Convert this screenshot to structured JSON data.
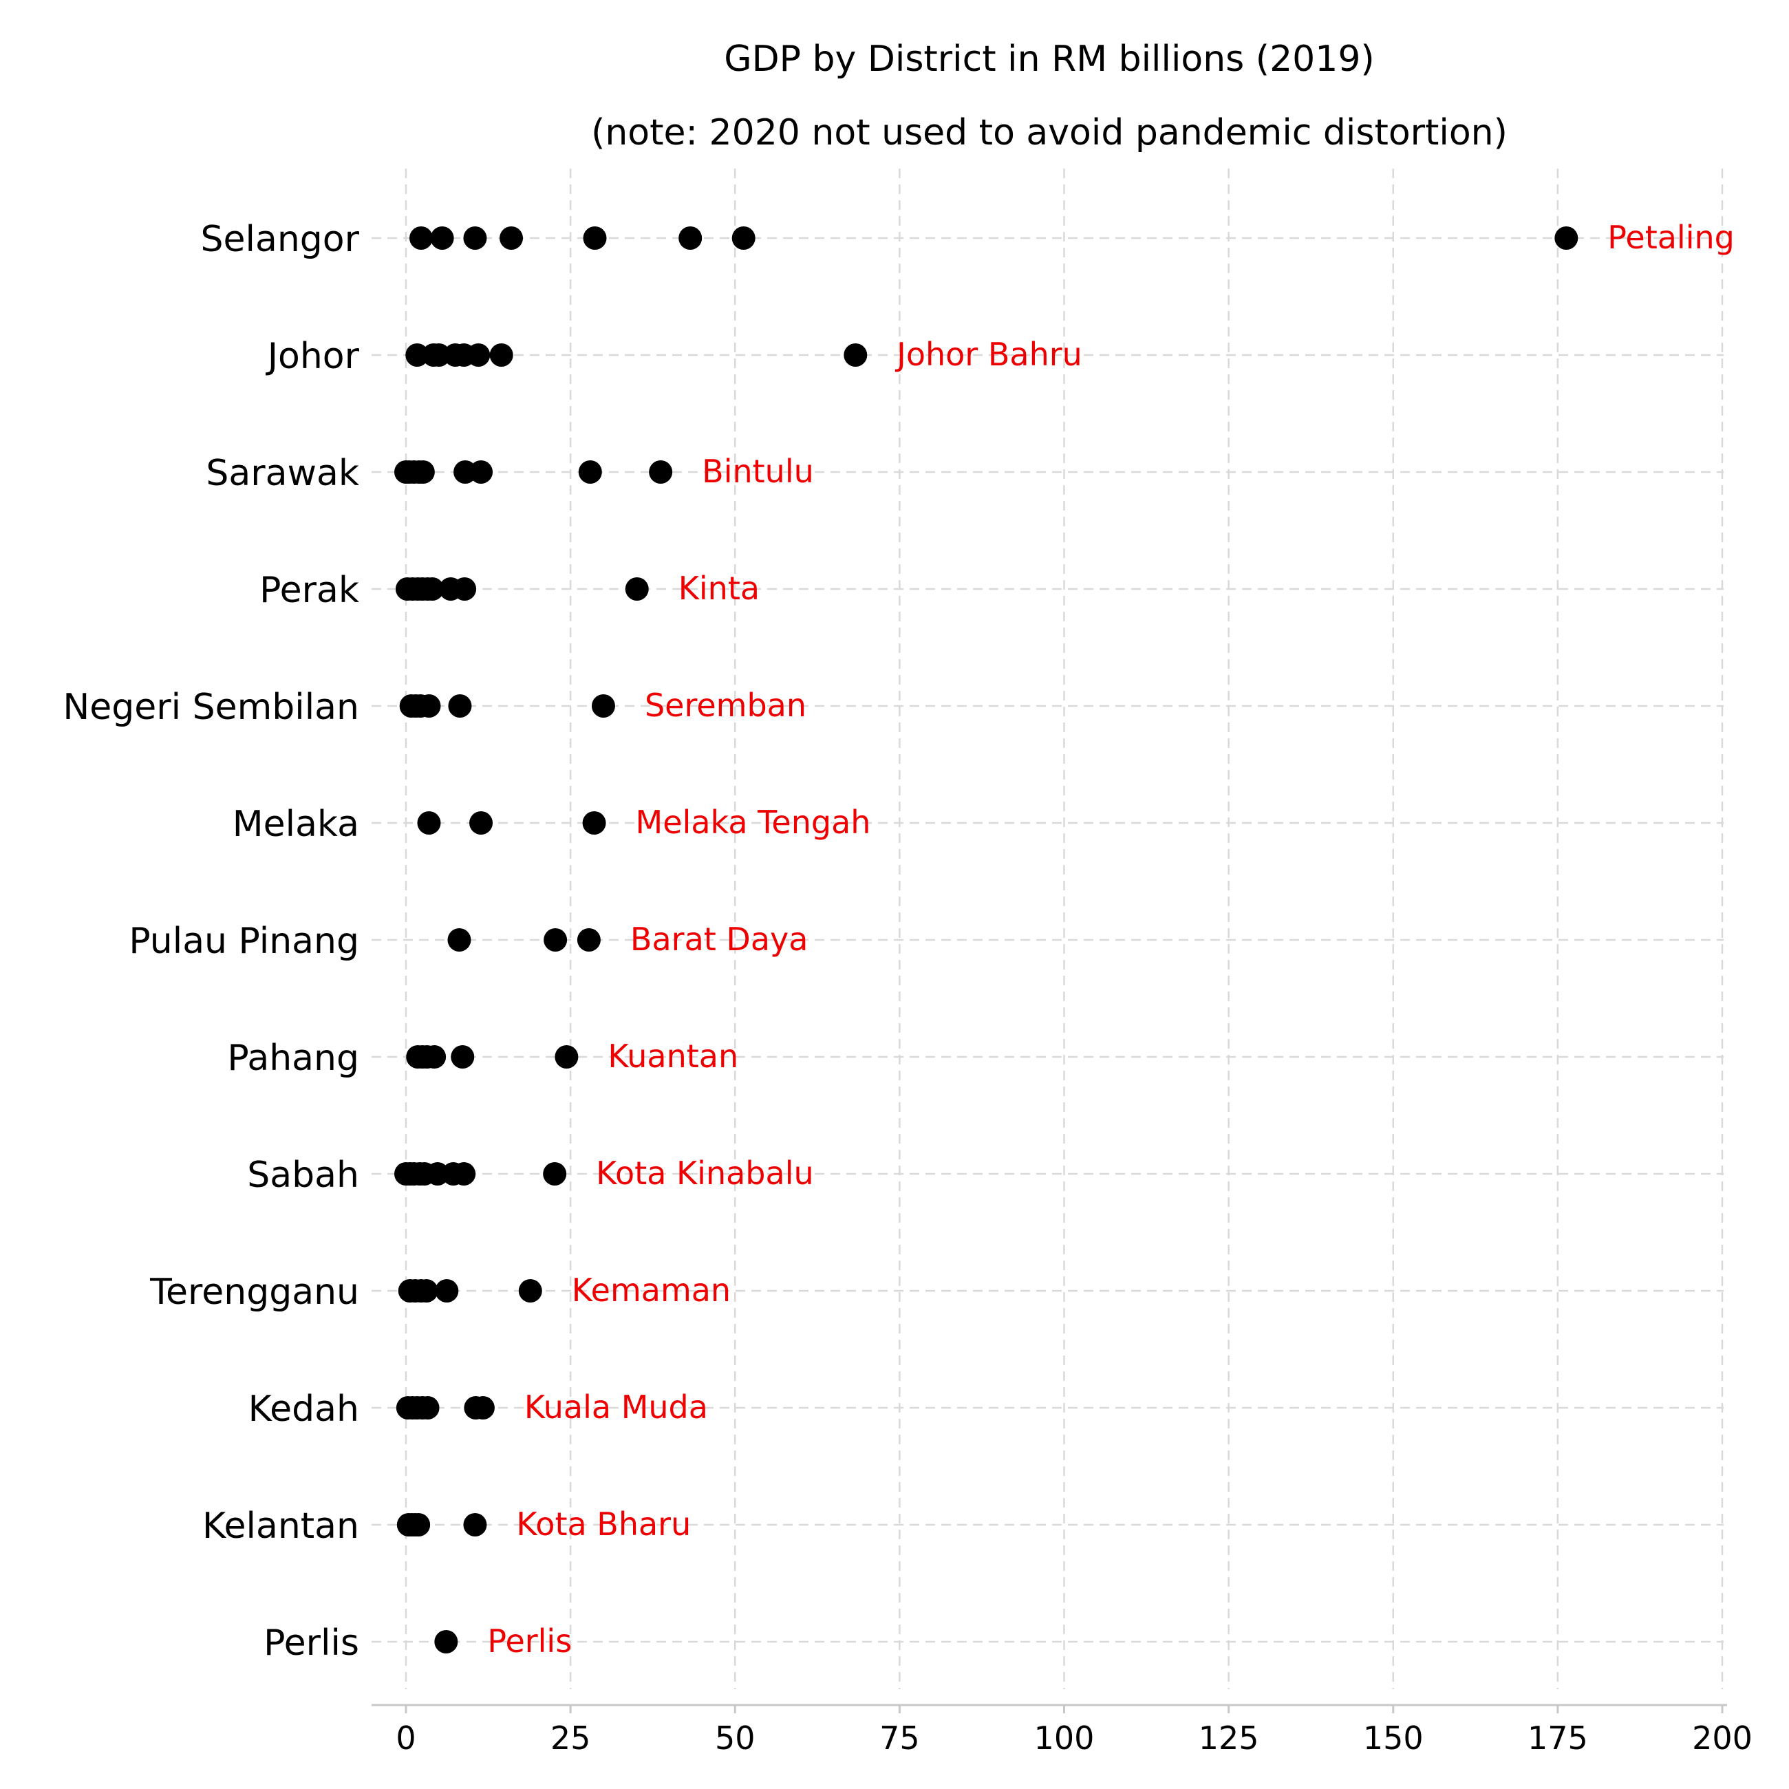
{
  "chart_data": {
    "type": "scatter",
    "title": "GDP by District in RM billions (2019)",
    "subtitle": "(note: 2020 not used to avoid pandemic distortion)",
    "xlabel": "",
    "ylabel": "",
    "xlim": [
      -5,
      202
    ],
    "xticks": [
      0,
      25,
      50,
      75,
      100,
      125,
      150,
      175,
      200
    ],
    "grid": true,
    "marker_color": "#000000",
    "annotation_color": "#ee0000",
    "categories": [
      "Selangor",
      "Johor",
      "Sarawak",
      "Perak",
      "Negeri Sembilan",
      "Melaka",
      "Pulau Pinang",
      "Pahang",
      "Sabah",
      "Terengganu",
      "Kedah",
      "Kelantan",
      "Perlis"
    ],
    "series": [
      {
        "state": "Selangor",
        "values": [
          2.3,
          5.5,
          10.5,
          16,
          28.7,
          43.2,
          51.3,
          176.3
        ],
        "top_district": "Petaling"
      },
      {
        "state": "Johor",
        "values": [
          1.7,
          4.2,
          5.0,
          7.5,
          8.8,
          11.0,
          14.5,
          68.3
        ],
        "top_district": "Johor Bahru"
      },
      {
        "state": "Sarawak",
        "values": [
          0,
          0.5,
          1.2,
          2.0,
          2.6,
          9.0,
          11.4,
          28.0,
          38.7
        ],
        "top_district": "Bintulu"
      },
      {
        "state": "Perak",
        "values": [
          0.2,
          1.0,
          1.8,
          2.5,
          3.3,
          4.0,
          6.8,
          8.9,
          35.1
        ],
        "top_district": "Kinta"
      },
      {
        "state": "Negeri Sembilan",
        "values": [
          0.8,
          1.5,
          2.2,
          3.5,
          8.2,
          30.0
        ],
        "top_district": "Seremban"
      },
      {
        "state": "Melaka",
        "values": [
          3.5,
          11.4,
          28.6
        ],
        "top_district": "Melaka Tengah"
      },
      {
        "state": "Pulau Pinang",
        "values": [
          8.1,
          22.7,
          27.8
        ],
        "top_district": "Barat Daya"
      },
      {
        "state": "Pahang",
        "values": [
          1.8,
          2.5,
          3.2,
          4.3,
          8.6,
          24.4
        ],
        "top_district": "Kuantan"
      },
      {
        "state": "Sabah",
        "values": [
          0,
          0.6,
          1.2,
          2.1,
          2.8,
          4.8,
          7.2,
          8.8,
          22.6
        ],
        "top_district": "Kota Kinabalu"
      },
      {
        "state": "Terengganu",
        "values": [
          0.6,
          1.4,
          2.3,
          3.1,
          6.2,
          18.9
        ],
        "top_district": "Kemaman"
      },
      {
        "state": "Kedah",
        "values": [
          0.3,
          1.0,
          1.7,
          2.5,
          3.3,
          10.6,
          11.7
        ],
        "top_district": "Kuala Muda"
      },
      {
        "state": "Kelantan",
        "values": [
          0.4,
          0.9,
          1.4,
          1.9,
          10.5
        ],
        "top_district": "Kota Bharu"
      },
      {
        "state": "Perlis",
        "values": [
          6.1
        ],
        "top_district": "Perlis"
      }
    ]
  }
}
